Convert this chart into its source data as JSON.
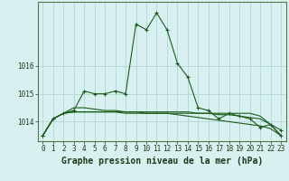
{
  "title": "",
  "xlabel": "Graphe pression niveau de la mer (hPa)",
  "bg_color": "#d8f0f0",
  "grid_color": "#b0d8d8",
  "line_color": "#1a5c1a",
  "x": [
    0,
    1,
    2,
    3,
    4,
    5,
    6,
    7,
    8,
    9,
    10,
    11,
    12,
    13,
    14,
    15,
    16,
    17,
    18,
    19,
    20,
    21,
    22,
    23
  ],
  "line1": [
    1013.5,
    1014.1,
    1014.3,
    1014.4,
    1015.1,
    1015.0,
    1015.0,
    1015.1,
    1015.0,
    1017.5,
    1017.3,
    1017.9,
    1017.3,
    1016.1,
    1015.6,
    1014.5,
    1014.4,
    1014.1,
    1014.3,
    1014.2,
    1014.1,
    1013.8,
    1013.9,
    1013.7
  ],
  "line2": [
    1013.5,
    1014.1,
    1014.3,
    1014.35,
    1014.35,
    1014.35,
    1014.35,
    1014.35,
    1014.35,
    1014.35,
    1014.35,
    1014.35,
    1014.35,
    1014.35,
    1014.35,
    1014.3,
    1014.3,
    1014.25,
    1014.25,
    1014.2,
    1014.15,
    1014.1,
    1013.9,
    1013.5
  ],
  "line3": [
    1013.5,
    1014.1,
    1014.3,
    1014.5,
    1014.5,
    1014.45,
    1014.4,
    1014.4,
    1014.35,
    1014.35,
    1014.3,
    1014.3,
    1014.3,
    1014.25,
    1014.2,
    1014.15,
    1014.1,
    1014.05,
    1014.0,
    1013.95,
    1013.9,
    1013.85,
    1013.75,
    1013.5
  ],
  "line4": [
    1013.5,
    1014.1,
    1014.3,
    1014.35,
    1014.35,
    1014.35,
    1014.35,
    1014.35,
    1014.3,
    1014.3,
    1014.3,
    1014.3,
    1014.3,
    1014.3,
    1014.3,
    1014.3,
    1014.3,
    1014.3,
    1014.3,
    1014.3,
    1014.3,
    1014.2,
    1013.9,
    1013.5
  ],
  "ylim": [
    1013.3,
    1018.3
  ],
  "yticks": [
    1014,
    1015,
    1016
  ],
  "xticks": [
    0,
    1,
    2,
    3,
    4,
    5,
    6,
    7,
    8,
    9,
    10,
    11,
    12,
    13,
    14,
    15,
    16,
    17,
    18,
    19,
    20,
    21,
    22,
    23
  ],
  "tick_fontsize": 5.5,
  "xlabel_fontsize": 7
}
